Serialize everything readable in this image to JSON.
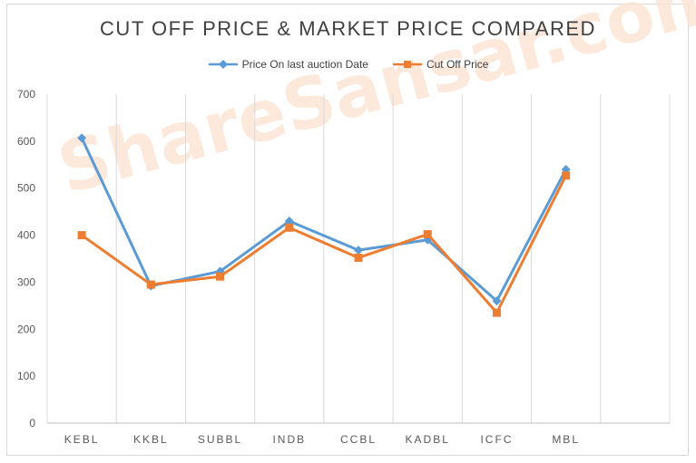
{
  "chart_data": {
    "type": "line",
    "title": "CUT OFF PRICE & MARKET PRICE COMPARED",
    "xlabel": "",
    "ylabel": "",
    "categories": [
      "KEBL",
      "KKBL",
      "SUBBL",
      "INDB",
      "CCBL",
      "KADBL",
      "ICFC",
      "MBL"
    ],
    "ylim": [
      0,
      700
    ],
    "yticks": [
      0,
      100,
      200,
      300,
      400,
      500,
      600,
      700
    ],
    "legend": "top",
    "grid": "vertical",
    "series": [
      {
        "name": "Price On last auction Date",
        "color": "#5b9bd5",
        "marker": "diamond",
        "values": [
          607,
          292,
          323,
          430,
          368,
          390,
          260,
          540
        ]
      },
      {
        "name": "Cut Off Price",
        "color": "#ed7d31",
        "marker": "square",
        "values": [
          400,
          295,
          312,
          416,
          352,
          402,
          235,
          527
        ]
      }
    ]
  },
  "watermark": "ShareSansar.com"
}
